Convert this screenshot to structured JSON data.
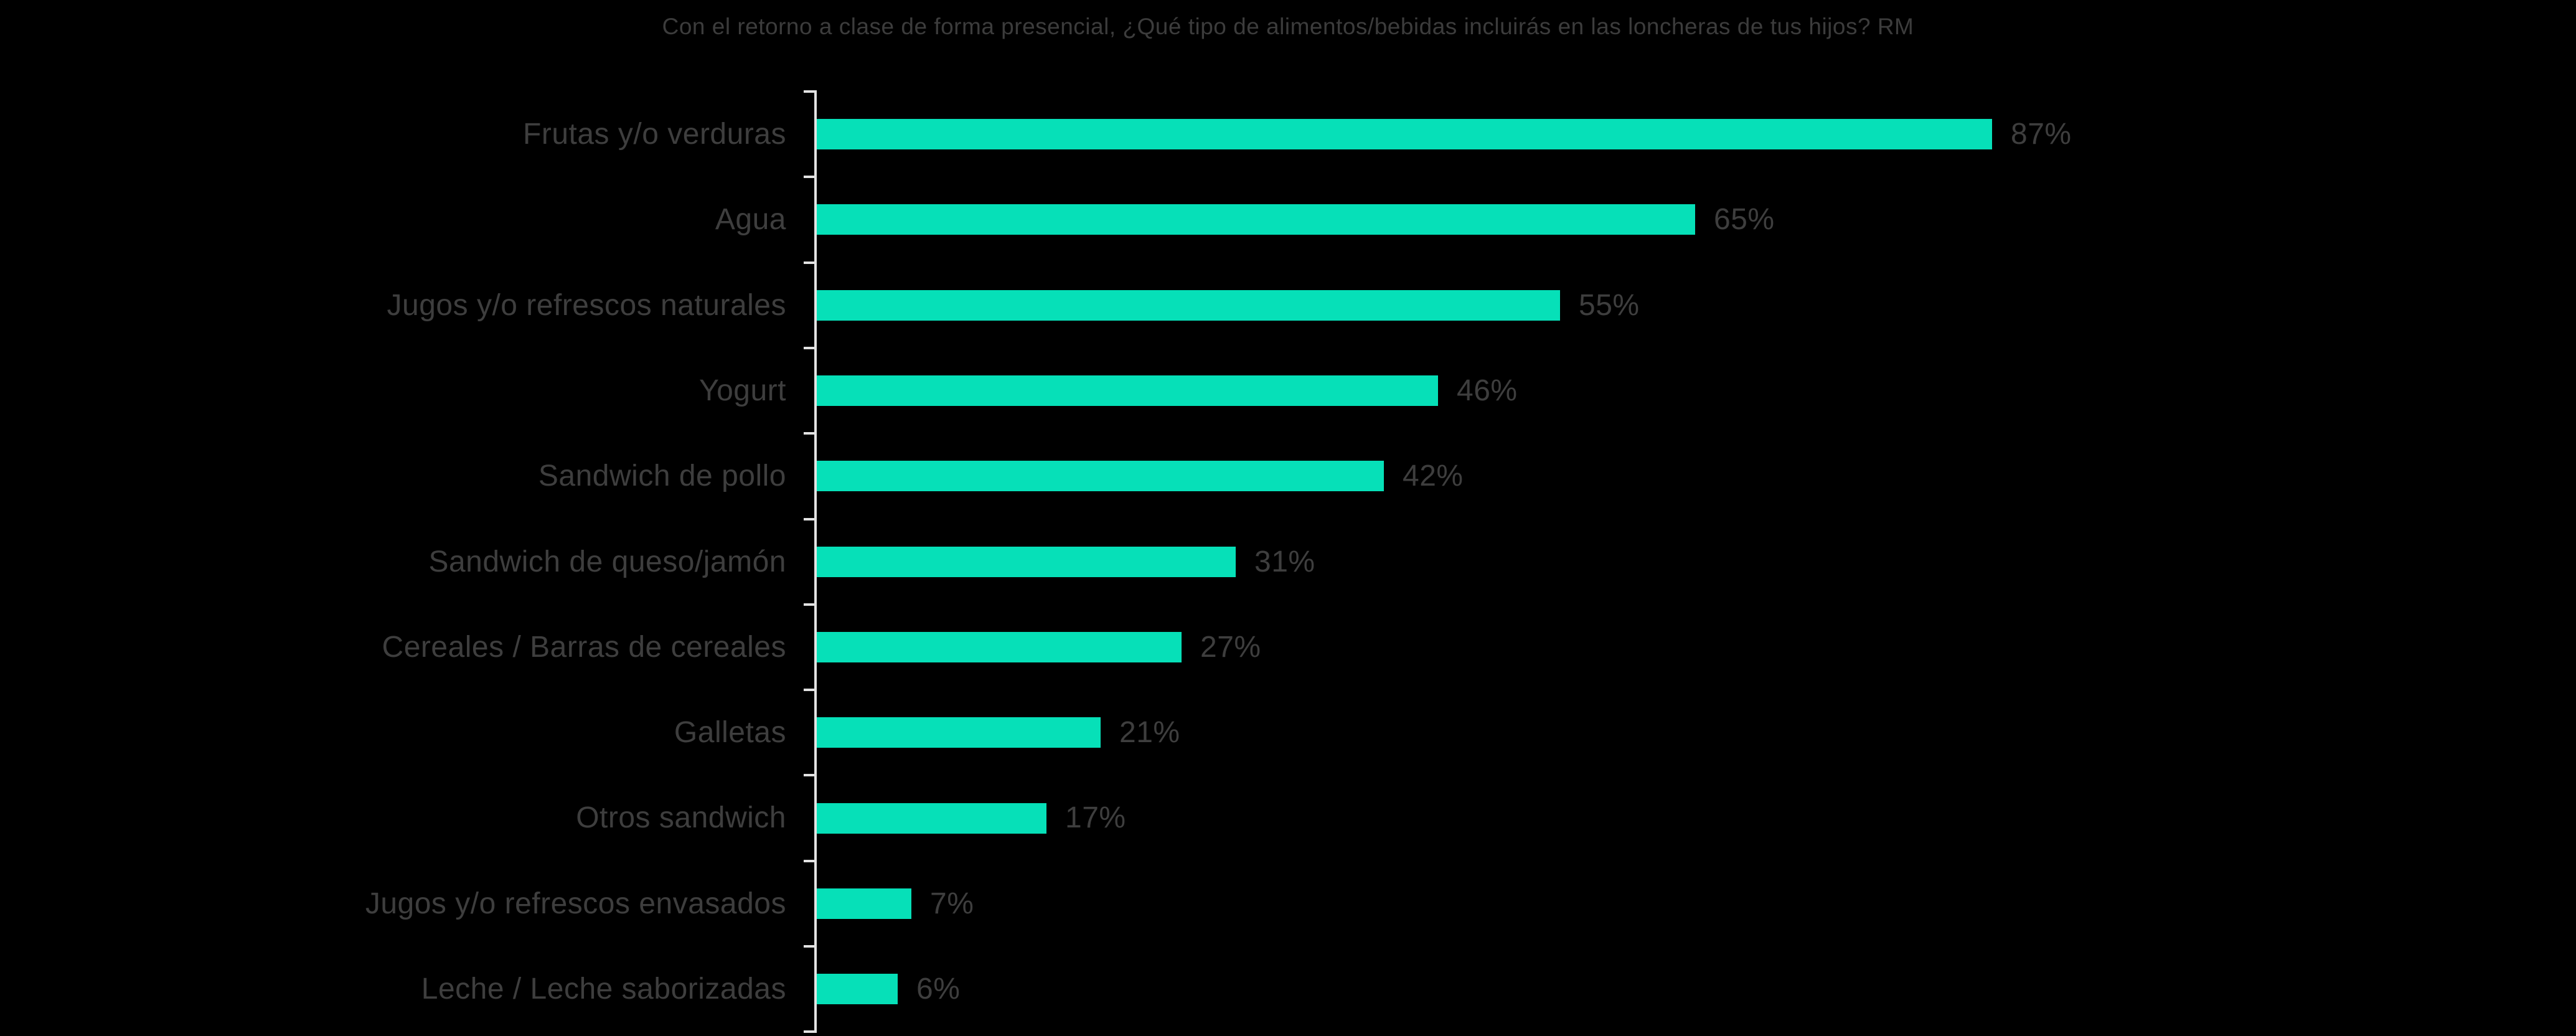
{
  "chart_data": {
    "type": "bar",
    "orientation": "horizontal",
    "title": "Con el retorno a clase de forma presencial, ¿Qué tipo de alimentos/bebidas incluirás en las loncheras de tus hijos? RM",
    "categories": [
      "Frutas y/o verduras",
      "Agua",
      "Jugos y/o refrescos naturales",
      "Yogurt",
      "Sandwich de pollo",
      "Sandwich de queso/jamón",
      "Cereales / Barras de cereales",
      "Galletas",
      "Otros sandwich",
      "Jugos y/o refrescos envasados",
      "Leche / Leche saborizadas"
    ],
    "values": [
      87,
      65,
      55,
      46,
      42,
      31,
      27,
      21,
      17,
      7,
      6
    ],
    "unit": "%",
    "value_labels": [
      "87%",
      "65%",
      "55%",
      "46%",
      "42%",
      "31%",
      "27%",
      "21%",
      "17%",
      "7%",
      "6%"
    ],
    "xlabel": "",
    "ylabel": "",
    "xlim": [
      0,
      100
    ],
    "grid": false,
    "legend": null,
    "colors": {
      "background": "#000000",
      "bar": "#06e0b8",
      "axis": "#e2e2e2",
      "title_text": "#3c3c3c",
      "label_text": "#3e3e3e",
      "value_text": "#3e3e3e"
    }
  }
}
